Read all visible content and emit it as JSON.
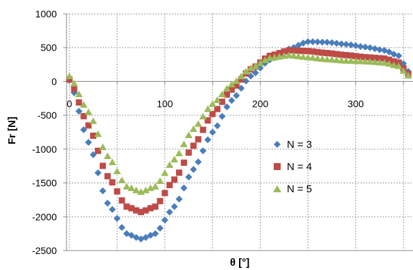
{
  "chart_data": {
    "type": "scatter",
    "title": "",
    "xlabel": "θ [°]",
    "ylabel": "Fr [N]",
    "xlim": [
      -3,
      360
    ],
    "ylim": [
      -2500,
      1000
    ],
    "x_ticks": [
      {
        "value": 0,
        "label": "0"
      },
      {
        "value": 100,
        "label": "100"
      },
      {
        "value": 200,
        "label": "200"
      },
      {
        "value": 300,
        "label": "300"
      }
    ],
    "y_ticks": [
      {
        "value": 1000,
        "label": "1000"
      },
      {
        "value": 500,
        "label": "500"
      },
      {
        "value": 0,
        "label": "0"
      },
      {
        "value": -500,
        "label": "-500"
      },
      {
        "value": -1000,
        "label": "-1000"
      },
      {
        "value": -1500,
        "label": "-1500"
      },
      {
        "value": -2000,
        "label": "-2000"
      },
      {
        "value": -2500,
        "label": "-2500"
      }
    ],
    "grid": "dashed major gridlines",
    "legend_position": "center-right",
    "series": [
      {
        "name": "N = 3",
        "marker": "diamond",
        "color": "#4A7EBB",
        "points": [
          [
            0,
            20
          ],
          [
            20,
            -900
          ],
          [
            40,
            -1800
          ],
          [
            60,
            -2250
          ],
          [
            75,
            -2330
          ],
          [
            90,
            -2250
          ],
          [
            110,
            -1850
          ],
          [
            130,
            -1300
          ],
          [
            150,
            -750
          ],
          [
            170,
            -280
          ],
          [
            190,
            80
          ],
          [
            210,
            320
          ],
          [
            230,
            480
          ],
          [
            250,
            590
          ],
          [
            270,
            580
          ],
          [
            290,
            550
          ],
          [
            310,
            510
          ],
          [
            330,
            460
          ],
          [
            345,
            380
          ],
          [
            355,
            150
          ]
        ]
      },
      {
        "name": "N = 4",
        "marker": "square",
        "color": "#BE4B48",
        "points": [
          [
            0,
            30
          ],
          [
            20,
            -650
          ],
          [
            40,
            -1400
          ],
          [
            60,
            -1850
          ],
          [
            75,
            -1930
          ],
          [
            90,
            -1850
          ],
          [
            110,
            -1450
          ],
          [
            130,
            -950
          ],
          [
            150,
            -480
          ],
          [
            170,
            -120
          ],
          [
            190,
            180
          ],
          [
            210,
            380
          ],
          [
            230,
            460
          ],
          [
            250,
            450
          ],
          [
            270,
            420
          ],
          [
            290,
            390
          ],
          [
            310,
            360
          ],
          [
            330,
            340
          ],
          [
            345,
            280
          ],
          [
            355,
            110
          ]
        ]
      },
      {
        "name": "N = 5",
        "marker": "triangle",
        "color": "#9BBB59",
        "points": [
          [
            0,
            80
          ],
          [
            20,
            -450
          ],
          [
            40,
            -1100
          ],
          [
            60,
            -1550
          ],
          [
            75,
            -1630
          ],
          [
            90,
            -1550
          ],
          [
            110,
            -1150
          ],
          [
            130,
            -700
          ],
          [
            150,
            -330
          ],
          [
            170,
            -40
          ],
          [
            190,
            200
          ],
          [
            210,
            350
          ],
          [
            230,
            390
          ],
          [
            250,
            360
          ],
          [
            270,
            330
          ],
          [
            290,
            310
          ],
          [
            310,
            300
          ],
          [
            330,
            280
          ],
          [
            345,
            230
          ],
          [
            355,
            90
          ]
        ]
      }
    ]
  }
}
